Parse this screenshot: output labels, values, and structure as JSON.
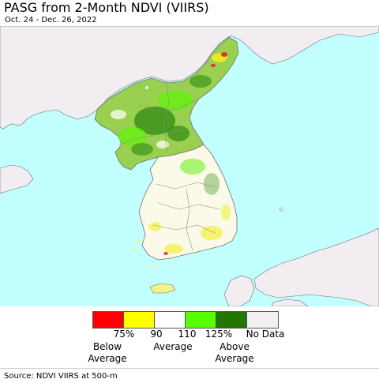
{
  "title": "PASG from 2-Month NDVI (VIIRS)",
  "date_range": "Oct. 24 - Dec. 26, 2022",
  "legend": {
    "colors": [
      "#ff0000",
      "#ffff00",
      "#ffffff",
      "#55ff00",
      "#227700",
      "#f2eef2"
    ],
    "ticks": [
      "75%",
      "90",
      "110",
      "125%"
    ],
    "no_data": "No Data",
    "below_line1": "Below",
    "below_line2": "Average",
    "average": "Average",
    "above_line1": "Above",
    "above_line2": "Average"
  },
  "map_colors": {
    "water": "#c2ffff",
    "foreign_land": "#f1edf1",
    "north_korea_base": "#9ad050",
    "south_korea_base": "#fbfae8",
    "green_dark": "#2d8a12",
    "green_bright": "#66f010",
    "yellow": "#f2ee1a",
    "red": "#e82020",
    "boundary": "#707070"
  },
  "source": "Source: NDVI VIIRS at 500-m"
}
